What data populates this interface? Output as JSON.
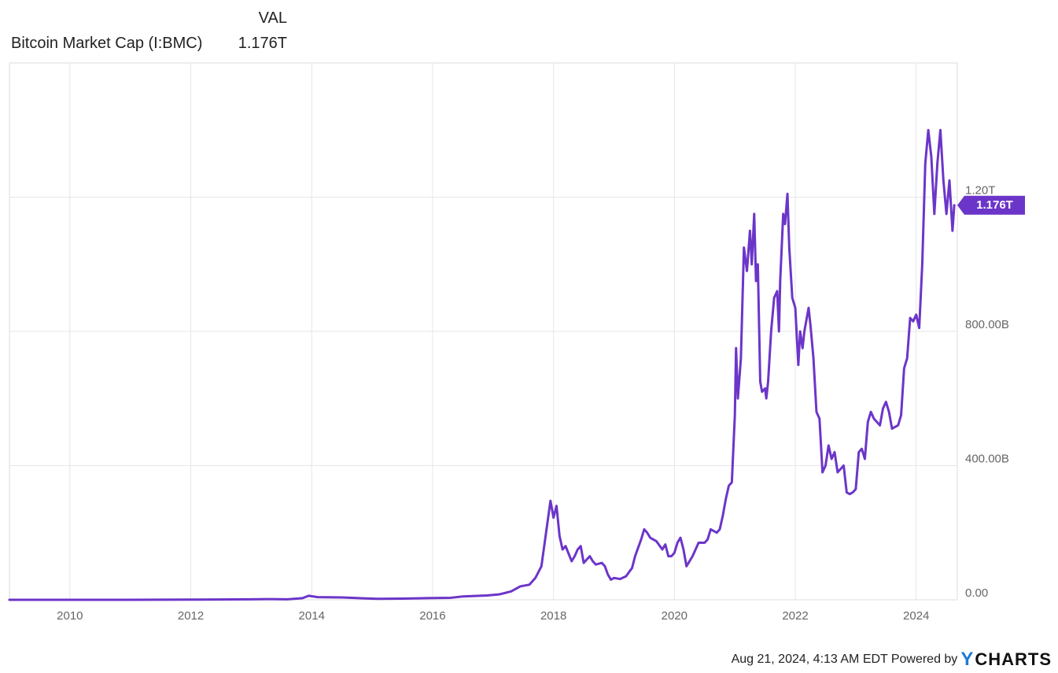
{
  "legend": {
    "column_header": "VAL",
    "series_name": "Bitcoin Market Cap (I:BMC)",
    "series_value": "1.176T"
  },
  "footer": {
    "timestamp": "Aug 21, 2024, 4:13 AM EDT",
    "powered_by": "Powered by",
    "brand": "CHARTS"
  },
  "colors": {
    "series": "#6c35c9",
    "grid": "#e6e6e6",
    "frame": "#dddddd",
    "flag": "#6c35c9"
  },
  "chart_data": {
    "type": "line",
    "ylim": [
      0,
      1600
    ],
    "y_ticks": [
      {
        "value": 0,
        "label": "0.00"
      },
      {
        "value": 400,
        "label": "400.00B"
      },
      {
        "value": 800,
        "label": "800.00B"
      },
      {
        "value": 1200,
        "label": "1.20T"
      }
    ],
    "x_ticks": [
      "2010",
      "2012",
      "2014",
      "2016",
      "2018",
      "2020",
      "2022",
      "2024"
    ],
    "last_value_label": "1.176T",
    "last_value": 1176,
    "grid": true,
    "series": [
      {
        "name": "Bitcoin Market Cap (I:BMC)",
        "points": [
          [
            2009.0,
            0
          ],
          [
            2011.0,
            0.1
          ],
          [
            2012.0,
            0.5
          ],
          [
            2013.0,
            1.5
          ],
          [
            2013.3,
            2
          ],
          [
            2013.6,
            1.5
          ],
          [
            2013.85,
            5
          ],
          [
            2013.95,
            12
          ],
          [
            2014.1,
            8
          ],
          [
            2014.5,
            7
          ],
          [
            2014.9,
            4
          ],
          [
            2015.1,
            3
          ],
          [
            2015.5,
            3.5
          ],
          [
            2015.9,
            5
          ],
          [
            2016.3,
            6
          ],
          [
            2016.5,
            10
          ],
          [
            2016.9,
            13
          ],
          [
            2017.1,
            16
          ],
          [
            2017.3,
            25
          ],
          [
            2017.45,
            40
          ],
          [
            2017.6,
            45
          ],
          [
            2017.7,
            65
          ],
          [
            2017.8,
            100
          ],
          [
            2017.9,
            230
          ],
          [
            2017.95,
            295
          ],
          [
            2018.0,
            245
          ],
          [
            2018.05,
            280
          ],
          [
            2018.1,
            190
          ],
          [
            2018.15,
            150
          ],
          [
            2018.2,
            160
          ],
          [
            2018.3,
            115
          ],
          [
            2018.35,
            130
          ],
          [
            2018.4,
            150
          ],
          [
            2018.45,
            160
          ],
          [
            2018.5,
            110
          ],
          [
            2018.6,
            130
          ],
          [
            2018.65,
            115
          ],
          [
            2018.7,
            105
          ],
          [
            2018.8,
            110
          ],
          [
            2018.85,
            100
          ],
          [
            2018.9,
            75
          ],
          [
            2018.95,
            60
          ],
          [
            2019.0,
            65
          ],
          [
            2019.1,
            62
          ],
          [
            2019.2,
            70
          ],
          [
            2019.3,
            95
          ],
          [
            2019.35,
            130
          ],
          [
            2019.45,
            180
          ],
          [
            2019.5,
            210
          ],
          [
            2019.55,
            200
          ],
          [
            2019.6,
            185
          ],
          [
            2019.7,
            175
          ],
          [
            2019.8,
            150
          ],
          [
            2019.85,
            165
          ],
          [
            2019.9,
            130
          ],
          [
            2019.95,
            130
          ],
          [
            2020.0,
            140
          ],
          [
            2020.05,
            170
          ],
          [
            2020.1,
            185
          ],
          [
            2020.15,
            150
          ],
          [
            2020.2,
            100
          ],
          [
            2020.3,
            130
          ],
          [
            2020.4,
            170
          ],
          [
            2020.5,
            170
          ],
          [
            2020.55,
            180
          ],
          [
            2020.6,
            210
          ],
          [
            2020.7,
            200
          ],
          [
            2020.75,
            210
          ],
          [
            2020.8,
            250
          ],
          [
            2020.85,
            300
          ],
          [
            2020.9,
            340
          ],
          [
            2020.95,
            350
          ],
          [
            2021.0,
            550
          ],
          [
            2021.02,
            750
          ],
          [
            2021.05,
            600
          ],
          [
            2021.1,
            720
          ],
          [
            2021.15,
            1050
          ],
          [
            2021.2,
            980
          ],
          [
            2021.25,
            1100
          ],
          [
            2021.28,
            1000
          ],
          [
            2021.32,
            1150
          ],
          [
            2021.35,
            950
          ],
          [
            2021.38,
            1000
          ],
          [
            2021.42,
            650
          ],
          [
            2021.45,
            620
          ],
          [
            2021.5,
            630
          ],
          [
            2021.52,
            600
          ],
          [
            2021.55,
            650
          ],
          [
            2021.6,
            800
          ],
          [
            2021.65,
            900
          ],
          [
            2021.7,
            920
          ],
          [
            2021.73,
            800
          ],
          [
            2021.75,
            950
          ],
          [
            2021.8,
            1150
          ],
          [
            2021.83,
            1120
          ],
          [
            2021.87,
            1210
          ],
          [
            2021.9,
            1050
          ],
          [
            2021.95,
            900
          ],
          [
            2022.0,
            870
          ],
          [
            2022.05,
            700
          ],
          [
            2022.08,
            800
          ],
          [
            2022.12,
            750
          ],
          [
            2022.15,
            800
          ],
          [
            2022.22,
            870
          ],
          [
            2022.25,
            820
          ],
          [
            2022.3,
            720
          ],
          [
            2022.35,
            560
          ],
          [
            2022.4,
            540
          ],
          [
            2022.45,
            380
          ],
          [
            2022.5,
            400
          ],
          [
            2022.55,
            460
          ],
          [
            2022.6,
            420
          ],
          [
            2022.65,
            440
          ],
          [
            2022.7,
            380
          ],
          [
            2022.75,
            390
          ],
          [
            2022.8,
            400
          ],
          [
            2022.85,
            320
          ],
          [
            2022.9,
            315
          ],
          [
            2022.95,
            320
          ],
          [
            2023.0,
            330
          ],
          [
            2023.05,
            440
          ],
          [
            2023.1,
            450
          ],
          [
            2023.15,
            420
          ],
          [
            2023.2,
            530
          ],
          [
            2023.25,
            560
          ],
          [
            2023.3,
            540
          ],
          [
            2023.4,
            520
          ],
          [
            2023.45,
            570
          ],
          [
            2023.5,
            590
          ],
          [
            2023.55,
            560
          ],
          [
            2023.6,
            510
          ],
          [
            2023.7,
            520
          ],
          [
            2023.75,
            550
          ],
          [
            2023.8,
            690
          ],
          [
            2023.85,
            720
          ],
          [
            2023.9,
            840
          ],
          [
            2023.95,
            830
          ],
          [
            2024.0,
            850
          ],
          [
            2024.05,
            810
          ],
          [
            2024.1,
            1000
          ],
          [
            2024.15,
            1300
          ],
          [
            2024.2,
            1400
          ],
          [
            2024.25,
            1320
          ],
          [
            2024.3,
            1150
          ],
          [
            2024.35,
            1300
          ],
          [
            2024.4,
            1400
          ],
          [
            2024.45,
            1250
          ],
          [
            2024.5,
            1150
          ],
          [
            2024.55,
            1250
          ],
          [
            2024.6,
            1100
          ],
          [
            2024.63,
            1176
          ]
        ]
      }
    ]
  }
}
